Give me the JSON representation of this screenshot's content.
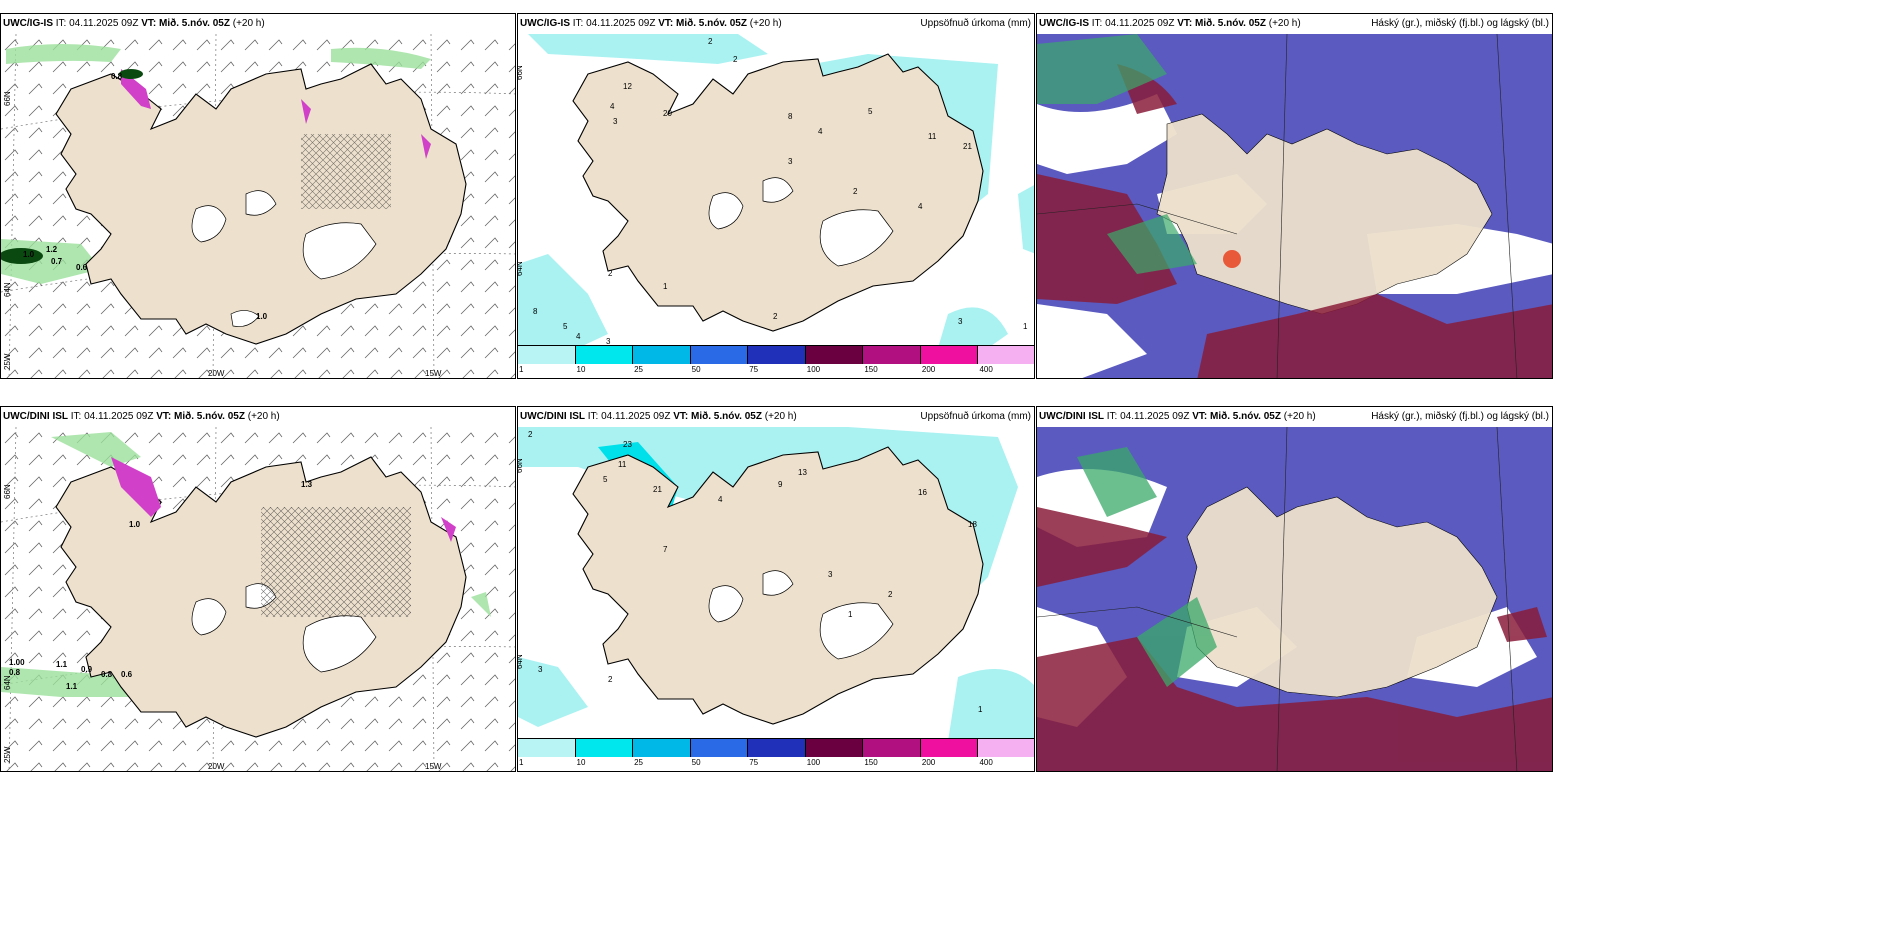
{
  "panels": [
    {
      "model": "UWC/IG-IS",
      "it_label": "IT:",
      "it": "04.11.2025 09Z",
      "vt_label": "VT:",
      "vt": "Mið. 5.nóv. 05Z",
      "lead": "(+20 h)",
      "title": ""
    },
    {
      "model": "UWC/IG-IS",
      "it_label": "IT:",
      "it": "04.11.2025 09Z",
      "vt_label": "VT:",
      "vt": "Mið. 5.nóv. 05Z",
      "lead": "(+20 h)",
      "title": "Uppsöfnuð úrkoma (mm)"
    },
    {
      "model": "UWC/IG-IS",
      "it_label": "IT:",
      "it": "04.11.2025 09Z",
      "vt_label": "VT:",
      "vt": "Mið. 5.nóv. 05Z",
      "lead": "(+20 h)",
      "title": "Háský (gr.), miðský (fj.bl.) og lágský (bl.)"
    },
    {
      "model": "UWC/DINI ISL",
      "it_label": "IT:",
      "it": "04.11.2025 09Z",
      "vt_label": "VT:",
      "vt": "Mið. 5.nóv. 05Z",
      "lead": "(+20 h)",
      "title": ""
    },
    {
      "model": "UWC/DINI ISL",
      "it_label": "IT:",
      "it": "04.11.2025 09Z",
      "vt_label": "VT:",
      "vt": "Mið. 5.nóv. 05Z",
      "lead": "(+20 h)",
      "title": "Uppsöfnuð úrkoma (mm)"
    },
    {
      "model": "UWC/DINI ISL",
      "it_label": "IT:",
      "it": "04.11.2025 09Z",
      "vt_label": "VT:",
      "vt": "Mið. 5.nóv. 05Z",
      "lead": "(+20 h)",
      "title": "Háský (gr.), miðský (fj.bl.) og lágský (bl.)"
    }
  ],
  "axes": {
    "lat66": "66N",
    "lat64": "64N",
    "lon25": "25W",
    "lon20": "20W",
    "lon15": "15W"
  },
  "colorbar": {
    "colors": [
      "#b8f4f4",
      "#00e8ee",
      "#00b8e8",
      "#2a6ae6",
      "#2030b8",
      "#6a0040",
      "#b01080",
      "#f010a0",
      "#f4b0f0"
    ],
    "ticks": [
      "1",
      "10",
      "25",
      "50",
      "75",
      "100",
      "150",
      "200",
      "400"
    ]
  },
  "colors": {
    "land": "#ede0cc",
    "precip": "#aaf2f2",
    "cloud_low": "#5a5ac0",
    "cloud_mid": "#8a1c3a",
    "cloud_high": "#3aaa6a",
    "snow": "#d040c8"
  },
  "map_labels": {
    "p1": [
      "0.8",
      "1.2",
      "0.7",
      "1.0",
      "0.6",
      "1.0"
    ],
    "p2": [
      "2",
      "2",
      "12",
      "20",
      "3",
      "4",
      "8",
      "5",
      "4",
      "11",
      "21",
      "3",
      "2",
      "4",
      "2",
      "1",
      "8",
      "5",
      "4",
      "3",
      "2",
      "3",
      "1"
    ],
    "p4": [
      "1.00",
      "0.8",
      "1.1",
      "0.9",
      "0.8",
      "0.6",
      "1.1",
      "1.3",
      "1.0"
    ],
    "p5": [
      "2",
      "23",
      "11",
      "21",
      "5",
      "7",
      "9",
      "4",
      "13",
      "16",
      "18",
      "3",
      "2",
      "1",
      "3",
      "2",
      "1"
    ]
  }
}
